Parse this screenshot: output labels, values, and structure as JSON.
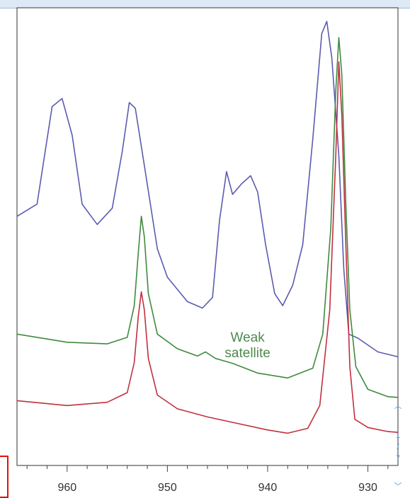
{
  "chart_data": {
    "type": "line",
    "title": "",
    "xlabel": "",
    "ylabel": "",
    "x_reversed": true,
    "xlim": [
      965,
      927
    ],
    "xticks": [
      "960",
      "950",
      "940",
      "930"
    ],
    "xtick_values": [
      960,
      950,
      940,
      930
    ],
    "annotation": {
      "line1": "Weak",
      "line2": "satellite",
      "x": 942,
      "y": 1.35,
      "color": "#4e8a4e"
    },
    "series": [
      {
        "color": "#5b5bb0",
        "points": [
          [
            965,
            3.05
          ],
          [
            963,
            3.2
          ],
          [
            961.5,
            4.4
          ],
          [
            960.5,
            4.5
          ],
          [
            959.5,
            4.05
          ],
          [
            958.5,
            3.2
          ],
          [
            957,
            2.95
          ],
          [
            955.5,
            3.15
          ],
          [
            954.5,
            3.85
          ],
          [
            953.8,
            4.45
          ],
          [
            953.2,
            4.38
          ],
          [
            952.2,
            3.6
          ],
          [
            951,
            2.65
          ],
          [
            950,
            2.3
          ],
          [
            948,
            2.0
          ],
          [
            946.5,
            1.92
          ],
          [
            945.5,
            2.05
          ],
          [
            944.8,
            3.0
          ],
          [
            944.1,
            3.6
          ],
          [
            943.5,
            3.32
          ],
          [
            942.6,
            3.45
          ],
          [
            941.7,
            3.55
          ],
          [
            941,
            3.35
          ],
          [
            940.2,
            2.7
          ],
          [
            939.3,
            2.1
          ],
          [
            938.5,
            1.95
          ],
          [
            937.5,
            2.2
          ],
          [
            936.5,
            2.7
          ],
          [
            935.5,
            4.0
          ],
          [
            934.6,
            5.3
          ],
          [
            934.1,
            5.45
          ],
          [
            933.6,
            5.0
          ],
          [
            932.9,
            3.8
          ],
          [
            932.4,
            2.4
          ],
          [
            931.9,
            1.6
          ],
          [
            931,
            1.55
          ],
          [
            929,
            1.38
          ],
          [
            927,
            1.32
          ]
        ]
      },
      {
        "color": "#3f8a3f",
        "points": [
          [
            965,
            1.6
          ],
          [
            960,
            1.5
          ],
          [
            956,
            1.48
          ],
          [
            954,
            1.56
          ],
          [
            953.3,
            1.95
          ],
          [
            952.9,
            2.6
          ],
          [
            952.6,
            3.05
          ],
          [
            952.3,
            2.8
          ],
          [
            951.9,
            2.1
          ],
          [
            951,
            1.6
          ],
          [
            949,
            1.42
          ],
          [
            947,
            1.33
          ],
          [
            946.2,
            1.38
          ],
          [
            945.2,
            1.3
          ],
          [
            943.5,
            1.24
          ],
          [
            941,
            1.12
          ],
          [
            938,
            1.06
          ],
          [
            935.5,
            1.18
          ],
          [
            934.5,
            1.6
          ],
          [
            933.7,
            2.9
          ],
          [
            933.2,
            4.6
          ],
          [
            932.9,
            5.25
          ],
          [
            932.6,
            4.8
          ],
          [
            932.2,
            3.2
          ],
          [
            931.8,
            1.9
          ],
          [
            931.2,
            1.2
          ],
          [
            930,
            0.92
          ],
          [
            928,
            0.83
          ],
          [
            927,
            0.82
          ]
        ]
      },
      {
        "color": "#c0303f",
        "points": [
          [
            965,
            0.78
          ],
          [
            960,
            0.72
          ],
          [
            956,
            0.76
          ],
          [
            954,
            0.88
          ],
          [
            953.3,
            1.25
          ],
          [
            952.9,
            1.82
          ],
          [
            952.6,
            2.12
          ],
          [
            952.3,
            1.9
          ],
          [
            951.9,
            1.3
          ],
          [
            951,
            0.85
          ],
          [
            949,
            0.68
          ],
          [
            946,
            0.58
          ],
          [
            943,
            0.5
          ],
          [
            940,
            0.42
          ],
          [
            938,
            0.38
          ],
          [
            936,
            0.44
          ],
          [
            934.8,
            0.72
          ],
          [
            933.8,
            1.9
          ],
          [
            933.2,
            3.8
          ],
          [
            932.9,
            4.95
          ],
          [
            932.6,
            4.3
          ],
          [
            932.2,
            2.7
          ],
          [
            931.8,
            1.2
          ],
          [
            931.3,
            0.55
          ],
          [
            930,
            0.45
          ],
          [
            928,
            0.4
          ],
          [
            927,
            0.39
          ]
        ]
      }
    ]
  },
  "scroll_glyphs": {
    "up": "︿",
    "one": "1",
    "slash": "/",
    "seven": "7",
    "down": "﹀"
  }
}
